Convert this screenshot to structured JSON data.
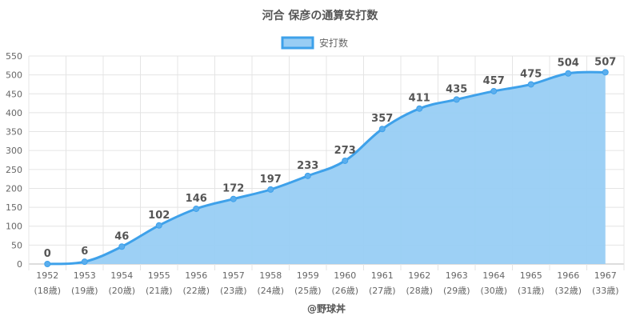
{
  "chart_data": {
    "type": "area",
    "title": "河合 保彦の通算安打数",
    "legend_position": "top",
    "grid": true,
    "categories": [
      "1952",
      "1953",
      "1954",
      "1955",
      "1956",
      "1957",
      "1958",
      "1959",
      "1960",
      "1961",
      "1962",
      "1963",
      "1964",
      "1965",
      "1966",
      "1967"
    ],
    "category_sublabels": [
      "(18歳)",
      "(19歳)",
      "(20歳)",
      "(21歳)",
      "(22歳)",
      "(23歳)",
      "(24歳)",
      "(25歳)",
      "(26歳)",
      "(27歳)",
      "(28歳)",
      "(29歳)",
      "(30歳)",
      "(31歳)",
      "(32歳)",
      "(33歳)"
    ],
    "ylim": [
      0,
      550
    ],
    "yticks": [
      0,
      50,
      100,
      150,
      200,
      250,
      300,
      350,
      400,
      450,
      500,
      550
    ],
    "series": [
      {
        "name": "安打数",
        "values": [
          0,
          6,
          46,
          102,
          146,
          172,
          197,
          233,
          273,
          357,
          411,
          435,
          457,
          475,
          504,
          507
        ],
        "color": "#3ea1ea",
        "fill": "#98cdf4"
      }
    ],
    "credit": "@野球丼"
  }
}
